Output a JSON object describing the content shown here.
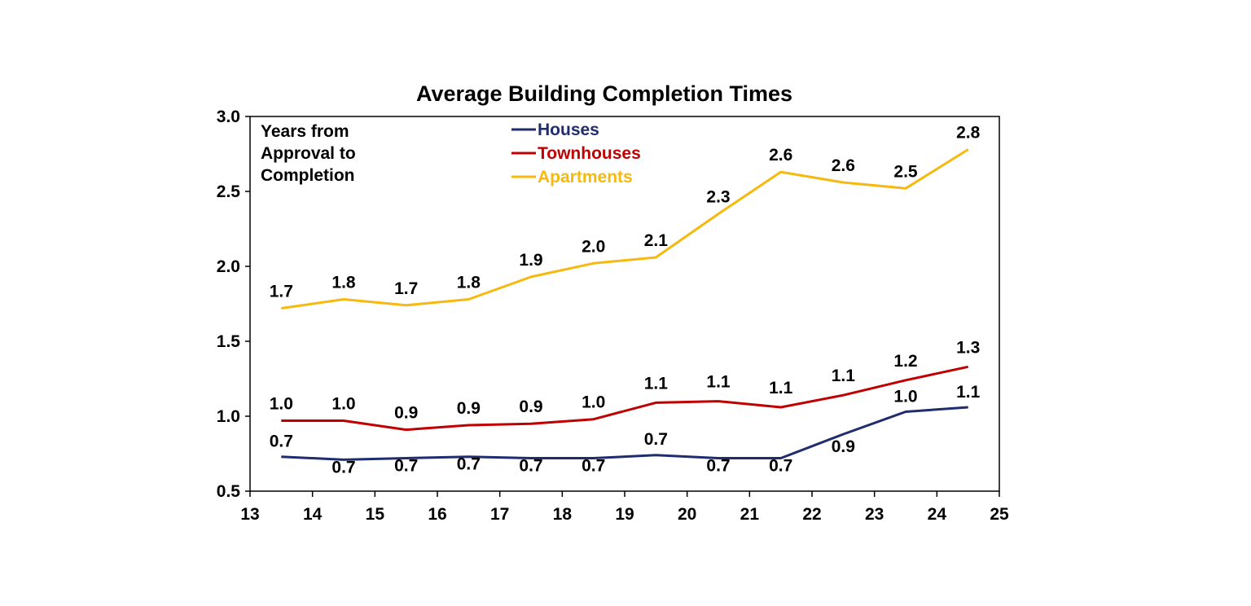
{
  "chart_data": {
    "type": "line",
    "title": "Average Building Completion Times",
    "annotation": [
      "Years from",
      "Approval to",
      "Completion"
    ],
    "x_ticks": [
      "13",
      "14",
      "15",
      "16",
      "17",
      "18",
      "19",
      "20",
      "21",
      "22",
      "23",
      "24",
      "25"
    ],
    "xlim": [
      13,
      25
    ],
    "y_ticks": [
      "0.5",
      "1.0",
      "1.5",
      "2.0",
      "2.5",
      "3.0"
    ],
    "ylim": [
      0.5,
      3.0
    ],
    "grid": false,
    "legend_position": "top-center",
    "x": [
      13.5,
      14.5,
      15.5,
      16.5,
      17.5,
      18.5,
      19.5,
      20.5,
      21.5,
      22.5,
      23.5,
      24.5
    ],
    "series": [
      {
        "name": "Houses",
        "color": "#1f2d6e",
        "values": [
          0.73,
          0.71,
          0.72,
          0.73,
          0.72,
          0.72,
          0.74,
          0.72,
          0.72,
          0.88,
          1.03,
          1.06
        ],
        "labels": [
          "0.7",
          "0.7",
          "0.7",
          "0.7",
          "0.7",
          "0.7",
          "0.7",
          "0.7",
          "0.7",
          "0.9",
          "1.0",
          "1.1"
        ]
      },
      {
        "name": "Townhouses",
        "color": "#c00000",
        "values": [
          0.97,
          0.97,
          0.91,
          0.94,
          0.95,
          0.98,
          1.09,
          1.1,
          1.06,
          1.14,
          1.24,
          1.33
        ],
        "labels": [
          "1.0",
          "1.0",
          "0.9",
          "0.9",
          "0.9",
          "1.0",
          "1.1",
          "1.1",
          "1.1",
          "1.1",
          "1.2",
          "1.3"
        ]
      },
      {
        "name": "Apartments",
        "color": "#f5b90f",
        "values": [
          1.72,
          1.78,
          1.74,
          1.78,
          1.93,
          2.02,
          2.06,
          2.35,
          2.63,
          2.56,
          2.52,
          2.78
        ],
        "labels": [
          "1.7",
          "1.8",
          "1.7",
          "1.8",
          "1.9",
          "2.0",
          "2.1",
          "2.3",
          "2.6",
          "2.6",
          "2.5",
          "2.8"
        ]
      }
    ]
  }
}
